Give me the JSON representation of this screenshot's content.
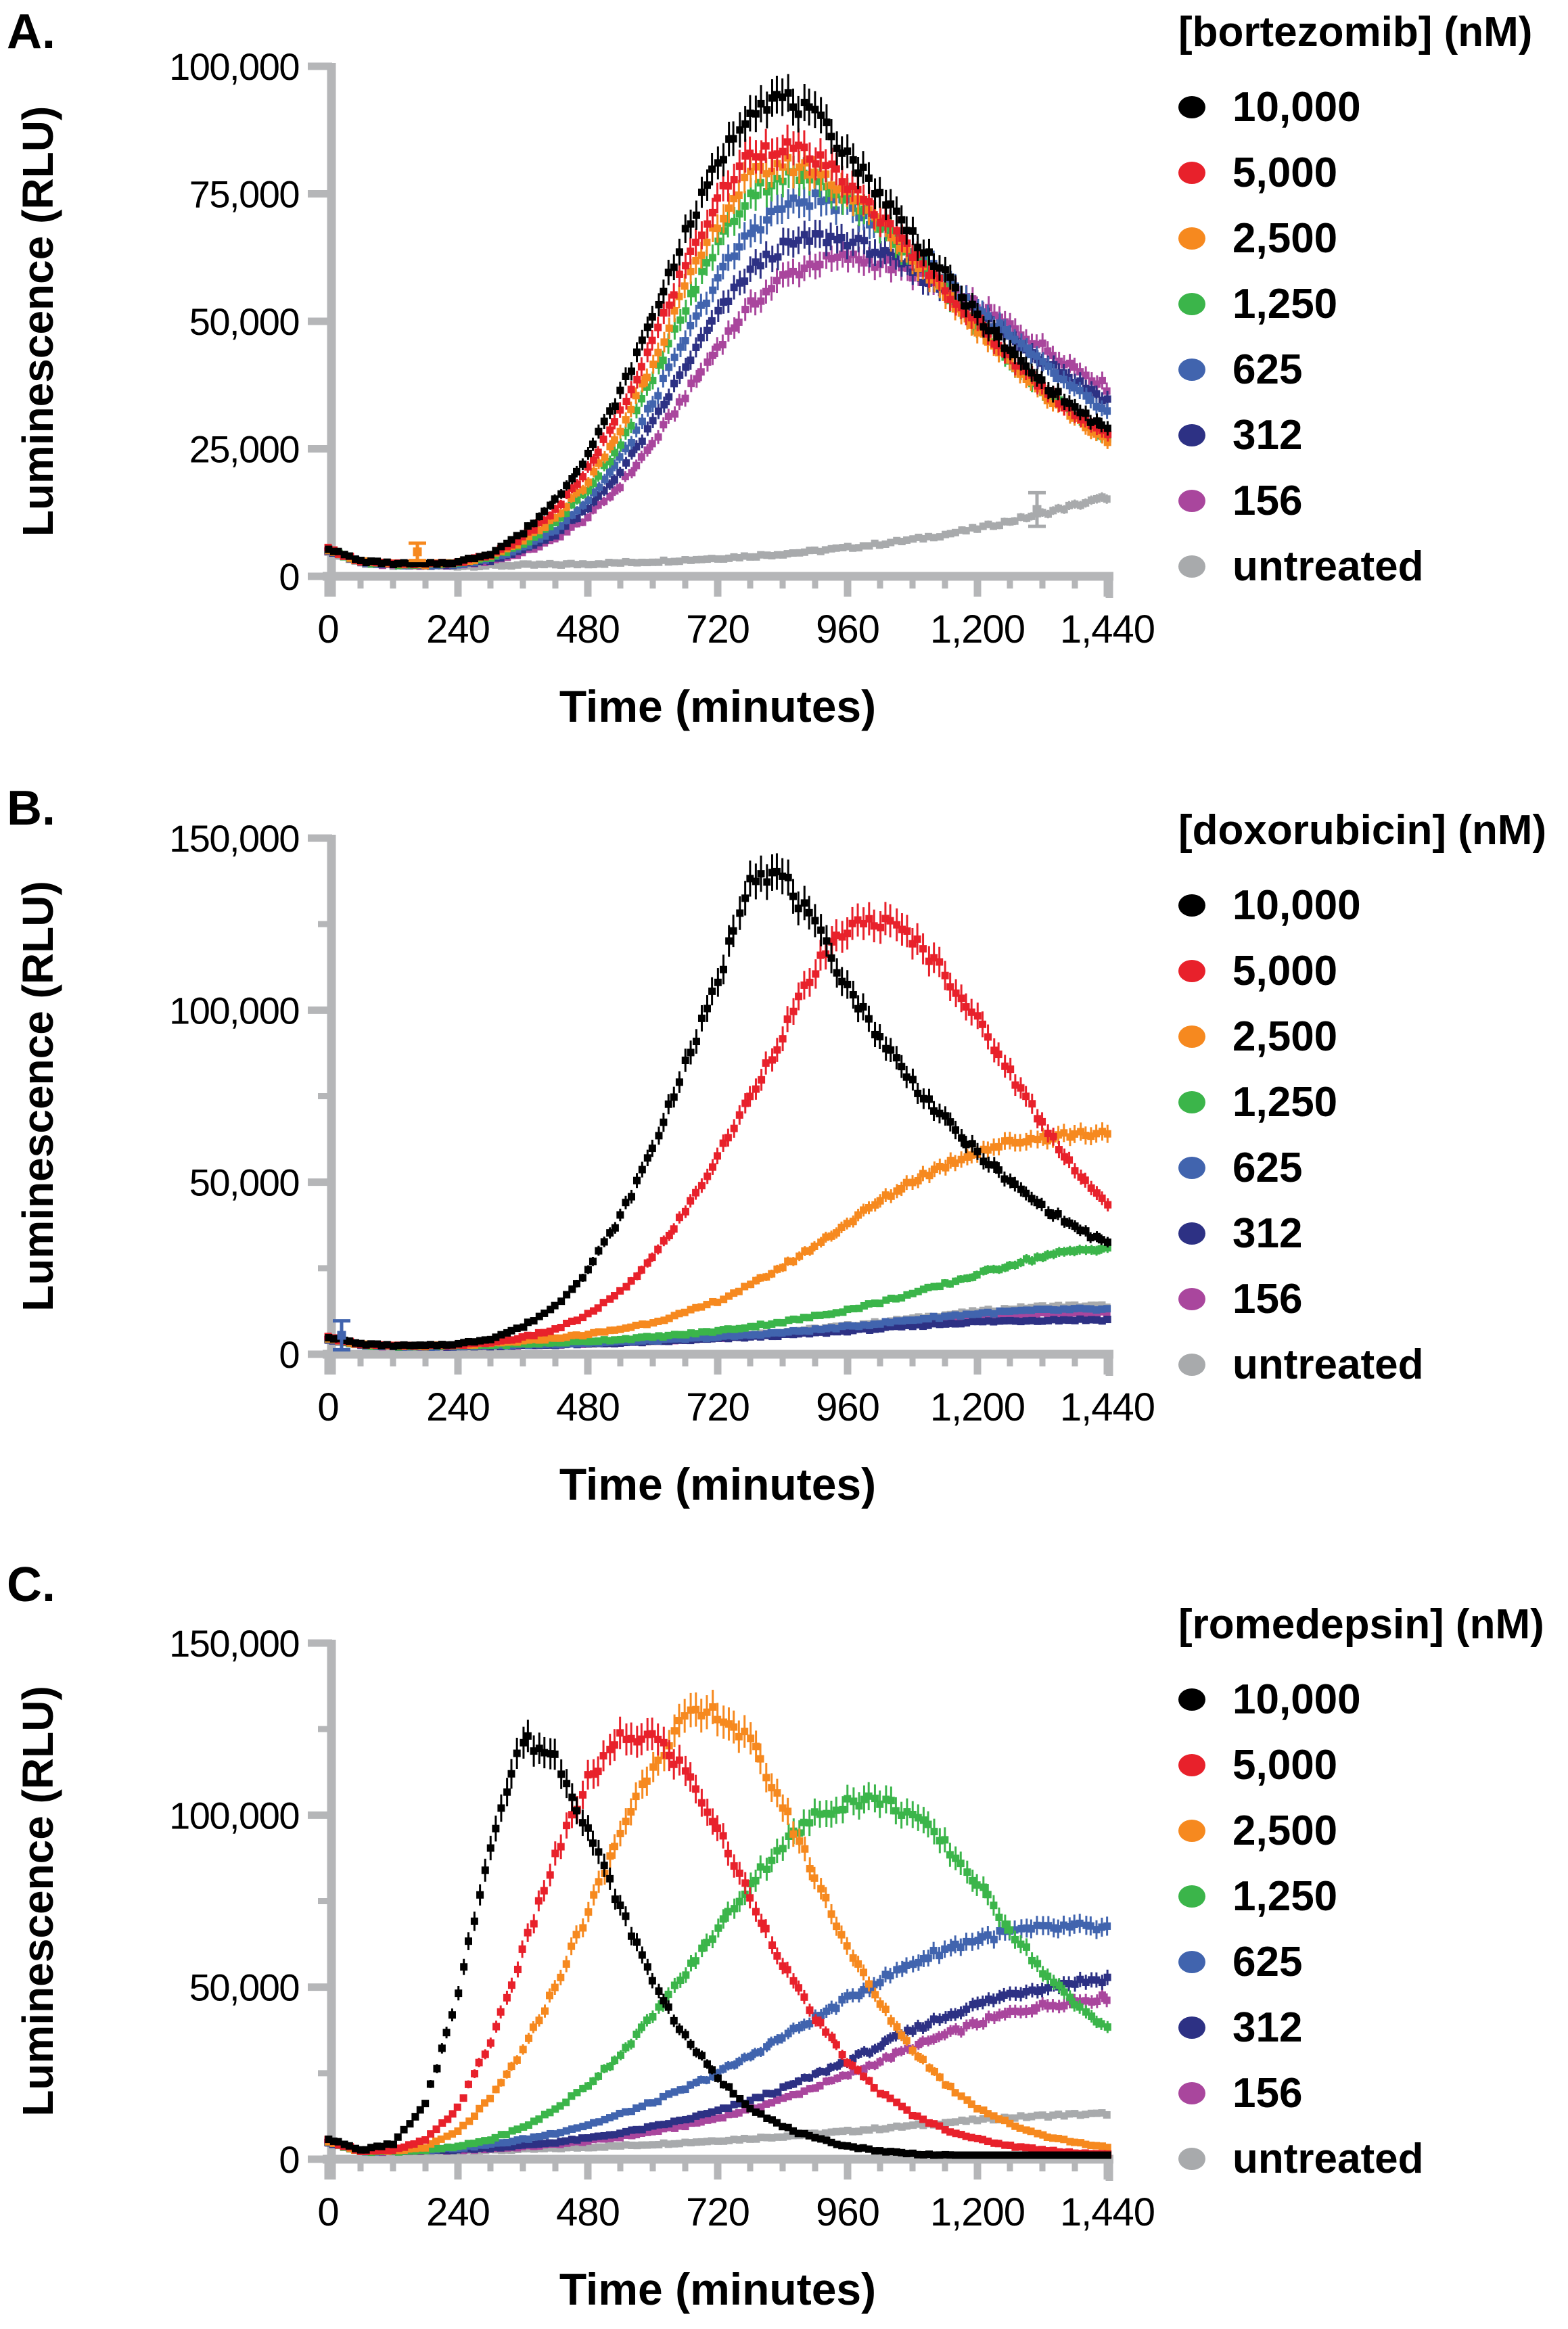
{
  "colors": {
    "c10000": "#000000",
    "c5000": "#E8212B",
    "c2500": "#F6891F",
    "c1250": "#3BB54A",
    "c625": "#4164AE",
    "c312": "#2D3184",
    "c156": "#A9469D",
    "untreated": "#A8AAAC",
    "axis": "#B5B6B8",
    "text": "#000000"
  },
  "chart_data": [
    {
      "type": "line",
      "panel_label": "A.",
      "legend_title": "[bortezomib] (nM)",
      "xlabel": "Time (minutes)",
      "ylabel": "Luminescence (RLU)",
      "xlim": [
        0,
        1440
      ],
      "ylim": [
        0,
        100000
      ],
      "x_ticks": [
        0,
        240,
        480,
        720,
        960,
        1200,
        1440
      ],
      "x_tick_labels": [
        "0",
        "240",
        "480",
        "720",
        "960",
        "1,200",
        "1,440"
      ],
      "x_minor_step": 60,
      "y_ticks": [
        0,
        25000,
        50000,
        75000,
        100000
      ],
      "y_tick_labels": [
        "0",
        "25,000",
        "50,000",
        "75,000",
        "100,000"
      ],
      "y_minor_ticks": [],
      "grid": false,
      "legend_position": "right",
      "x": [
        0,
        60,
        120,
        180,
        240,
        300,
        360,
        420,
        480,
        540,
        600,
        660,
        720,
        780,
        840,
        900,
        960,
        1020,
        1080,
        1140,
        1200,
        1260,
        1320,
        1380,
        1440
      ],
      "series": [
        {
          "name": "10,000",
          "color_key": "c10000",
          "values": [
            5500,
            3000,
            2500,
            2400,
            2800,
            4500,
            8500,
            15000,
            24000,
            36000,
            51000,
            67000,
            81000,
            92000,
            94000,
            90000,
            83000,
            75000,
            67000,
            59000,
            51000,
            44000,
            38000,
            33000,
            28500
          ]
        },
        {
          "name": "5,000",
          "color_key": "c5000",
          "values": [
            5400,
            2950,
            2450,
            2350,
            2700,
            4200,
            7500,
            13000,
            21000,
            32000,
            46000,
            61000,
            74000,
            83000,
            84500,
            82000,
            77000,
            70500,
            63500,
            56500,
            49500,
            43000,
            37000,
            32000,
            27500
          ]
        },
        {
          "name": "2,500",
          "color_key": "c2500",
          "values": [
            5300,
            2900,
            2400,
            2300,
            2600,
            3900,
            6800,
            11500,
            18500,
            28500,
            42000,
            56500,
            69500,
            78500,
            81000,
            79500,
            75500,
            69500,
            62500,
            55500,
            48500,
            42000,
            36000,
            31000,
            26500
          ]
        },
        {
          "name": "1,250",
          "color_key": "c1250",
          "values": [
            5300,
            2850,
            2350,
            2250,
            2500,
            3700,
            6200,
            10500,
            17000,
            26000,
            38500,
            52500,
            65500,
            75000,
            78500,
            78000,
            74500,
            69000,
            62500,
            56000,
            49000,
            42500,
            36500,
            31500,
            27000
          ]
        },
        {
          "name": "625",
          "color_key": "c625",
          "values": [
            5200,
            2800,
            2300,
            2200,
            2400,
            3400,
            5600,
            9200,
            15000,
            23000,
            34000,
            46500,
            58500,
            67500,
            72500,
            74000,
            72500,
            69000,
            64000,
            58500,
            52500,
            47000,
            41500,
            36500,
            32000
          ]
        },
        {
          "name": "312",
          "color_key": "c312",
          "values": [
            5200,
            2750,
            2250,
            2150,
            2350,
            3200,
            5100,
            8200,
            13200,
            20500,
            30000,
            41000,
            51500,
            60000,
            64500,
            66500,
            66000,
            63500,
            60000,
            56000,
            51500,
            47000,
            42500,
            38500,
            34500
          ]
        },
        {
          "name": "156",
          "color_key": "c156",
          "values": [
            5100,
            2700,
            2200,
            2100,
            2300,
            3000,
            4600,
            7300,
            11600,
            17800,
            26000,
            35500,
            45000,
            53000,
            58500,
            61500,
            62500,
            61500,
            59500,
            56500,
            53000,
            49000,
            45000,
            41000,
            37000
          ]
        },
        {
          "name": "untreated",
          "color_key": "untreated",
          "values": [
            5000,
            2600,
            2100,
            2000,
            2000,
            2100,
            2200,
            2300,
            2450,
            2650,
            2900,
            3200,
            3550,
            3950,
            4400,
            4950,
            5600,
            6350,
            7200,
            8200,
            9400,
            10800,
            12300,
            13900,
            15500
          ]
        }
      ],
      "extra_points": [
        {
          "series_color_key": "c2500",
          "t": 165,
          "v": 4800,
          "err": 1700
        },
        {
          "series_color_key": "untreated",
          "t": 1310,
          "v": 13100,
          "err": 3300
        }
      ]
    },
    {
      "type": "line",
      "panel_label": "B.",
      "legend_title": "[doxorubicin] (nM)",
      "xlabel": "Time (minutes)",
      "ylabel": "Luminescence (RLU)",
      "xlim": [
        0,
        1440
      ],
      "ylim": [
        0,
        150000
      ],
      "x_ticks": [
        0,
        240,
        480,
        720,
        960,
        1200,
        1440
      ],
      "x_tick_labels": [
        "0",
        "240",
        "480",
        "720",
        "960",
        "1,200",
        "1,440"
      ],
      "x_minor_step": 60,
      "y_ticks": [
        0,
        50000,
        100000,
        150000
      ],
      "y_tick_labels": [
        "0",
        "50,000",
        "100,000",
        "150,000"
      ],
      "y_minor_ticks": [
        25000,
        75000,
        125000
      ],
      "grid": false,
      "legend_position": "right",
      "x": [
        0,
        60,
        120,
        180,
        240,
        300,
        360,
        420,
        480,
        540,
        600,
        660,
        720,
        780,
        840,
        900,
        960,
        1020,
        1080,
        1140,
        1200,
        1260,
        1320,
        1380,
        1440
      ],
      "series": [
        {
          "name": "10,000",
          "color_key": "c10000",
          "values": [
            5000,
            3000,
            2500,
            2500,
            3000,
            4500,
            8000,
            14000,
            24500,
            40000,
            60000,
            84000,
            108000,
            140000,
            139000,
            124000,
            107000,
            92000,
            79000,
            68000,
            58500,
            50000,
            43000,
            37000,
            32000
          ]
        },
        {
          "name": "5,000",
          "color_key": "c5000",
          "values": [
            4900,
            2900,
            2450,
            2400,
            2700,
            3400,
            4800,
            7200,
            11500,
            18000,
            28000,
            41500,
            57500,
            75000,
            93000,
            112000,
            124000,
            126000,
            121000,
            111000,
            97000,
            82000,
            67000,
            54000,
            43000
          ]
        },
        {
          "name": "2,500",
          "color_key": "c2500",
          "values": [
            4700,
            2800,
            2400,
            2400,
            2600,
            3100,
            3800,
            4700,
            5800,
            7300,
            9300,
            12000,
            15500,
            20000,
            25500,
            31500,
            38000,
            44500,
            50500,
            55000,
            59000,
            61500,
            63000,
            64000,
            64500
          ]
        },
        {
          "name": "1,250",
          "color_key": "c1250",
          "values": [
            4600,
            2700,
            2350,
            2300,
            2450,
            2700,
            3000,
            3350,
            3800,
            4350,
            5000,
            5800,
            6800,
            8000,
            9400,
            11000,
            12900,
            15100,
            17600,
            20300,
            23200,
            26000,
            28500,
            30000,
            31000
          ]
        },
        {
          "name": "625",
          "color_key": "c625",
          "values": [
            4500,
            2650,
            2300,
            2250,
            2350,
            2500,
            2700,
            2950,
            3250,
            3600,
            4000,
            4450,
            5000,
            5600,
            6300,
            7100,
            8000,
            9000,
            10000,
            11000,
            11800,
            12400,
            12800,
            13000,
            13000
          ]
        },
        {
          "name": "312",
          "color_key": "c312",
          "values": [
            4400,
            2600,
            2250,
            2200,
            2300,
            2400,
            2550,
            2750,
            3000,
            3300,
            3650,
            4050,
            4500,
            5000,
            5550,
            6150,
            6800,
            7500,
            8200,
            8900,
            9400,
            9700,
            9900,
            10000,
            10000
          ]
        },
        {
          "name": "156",
          "color_key": "c156",
          "values": [
            4450,
            2620,
            2280,
            2230,
            2330,
            2450,
            2600,
            2820,
            3100,
            3430,
            3820,
            4280,
            4800,
            5380,
            6020,
            6720,
            7480,
            8300,
            9150,
            10000,
            10800,
            11400,
            11800,
            12000,
            12000
          ]
        },
        {
          "name": "untreated",
          "color_key": "untreated",
          "values": [
            4300,
            2550,
            2200,
            2150,
            2250,
            2380,
            2550,
            2780,
            3080,
            3450,
            3900,
            4430,
            5040,
            5730,
            6500,
            7350,
            8280,
            9290,
            10350,
            11400,
            12400,
            13200,
            13800,
            14000,
            14000
          ]
        }
      ],
      "extra_points": [
        {
          "series_color_key": "c625",
          "t": 25,
          "v": 5500,
          "err": 4200
        }
      ]
    },
    {
      "type": "line",
      "panel_label": "C.",
      "legend_title": "[romedepsin] (nM)",
      "xlabel": "Time (minutes)",
      "ylabel": "Luminescence (RLU)",
      "xlim": [
        0,
        1440
      ],
      "ylim": [
        0,
        150000
      ],
      "x_ticks": [
        0,
        240,
        480,
        720,
        960,
        1200,
        1440
      ],
      "x_tick_labels": [
        "0",
        "240",
        "480",
        "720",
        "960",
        "1,200",
        "1,440"
      ],
      "x_minor_step": 60,
      "y_ticks": [
        0,
        50000,
        100000,
        150000
      ],
      "y_tick_labels": [
        "0",
        "50,000",
        "100,000",
        "150,000"
      ],
      "y_minor_ticks": [
        25000,
        75000,
        125000
      ],
      "grid": false,
      "legend_position": "right",
      "x": [
        0,
        60,
        120,
        180,
        240,
        300,
        360,
        420,
        480,
        540,
        600,
        660,
        720,
        780,
        840,
        900,
        960,
        1020,
        1080,
        1140,
        1200,
        1260,
        1320,
        1380,
        1440
      ],
      "series": [
        {
          "name": "10,000",
          "color_key": "c10000",
          "values": [
            6000,
            2600,
            4500,
            16000,
            48000,
            92000,
            122000,
            117000,
            96000,
            73000,
            52000,
            35500,
            23500,
            15000,
            9500,
            6000,
            3800,
            2400,
            1600,
            1100,
            850,
            700,
            600,
            550,
            500
          ]
        },
        {
          "name": "5,000",
          "color_key": "c5000",
          "values": [
            5500,
            2400,
            2500,
            5500,
            15000,
            34000,
            60000,
            88000,
            110000,
            122000,
            123000,
            113000,
            96000,
            76000,
            57000,
            41000,
            28500,
            19500,
            13000,
            8700,
            5800,
            3900,
            2700,
            1900,
            1400
          ]
        },
        {
          "name": "2,500",
          "color_key": "c2500",
          "values": [
            5300,
            2300,
            2350,
            3500,
            8000,
            17500,
            31500,
            50000,
            72000,
            95000,
            115000,
            128000,
            130000,
            121000,
            103000,
            82000,
            62000,
            45000,
            32000,
            22000,
            15000,
            10200,
            7000,
            4900,
            3500
          ]
        },
        {
          "name": "1,250",
          "color_key": "c1250",
          "values": [
            5200,
            2250,
            2250,
            2600,
            3600,
            5700,
            9200,
            14500,
            21500,
            30500,
            41500,
            54000,
            67000,
            80000,
            91500,
            99500,
            104000,
            104500,
            100000,
            91500,
            80000,
            67000,
            54500,
            45000,
            38500
          ]
        },
        {
          "name": "625",
          "color_key": "c625",
          "values": [
            5100,
            2300,
            2350,
            2700,
            3300,
            4300,
            5700,
            7600,
            10000,
            13000,
            16500,
            20500,
            25000,
            30000,
            35500,
            41000,
            46500,
            52000,
            57000,
            61000,
            64000,
            66000,
            67000,
            67500,
            67000
          ]
        },
        {
          "name": "312",
          "color_key": "c312",
          "values": [
            5000,
            2250,
            2300,
            2500,
            2800,
            3300,
            4000,
            4900,
            6100,
            7600,
            9400,
            11500,
            14000,
            17000,
            20500,
            24500,
            28500,
            33000,
            37500,
            41500,
            45000,
            48000,
            50000,
            51500,
            52500
          ]
        },
        {
          "name": "156",
          "color_key": "c156",
          "values": [
            5000,
            2200,
            2250,
            2400,
            2650,
            3050,
            3600,
            4350,
            5300,
            6500,
            8000,
            9800,
            12000,
            14500,
            17500,
            21000,
            24500,
            28500,
            32500,
            36000,
            39500,
            42500,
            44500,
            46000,
            47000
          ]
        },
        {
          "name": "untreated",
          "color_key": "untreated",
          "values": [
            5500,
            2300,
            2200,
            2250,
            2400,
            2600,
            2850,
            3150,
            3500,
            3900,
            4350,
            4850,
            5400,
            6000,
            6650,
            7350,
            8100,
            8900,
            9750,
            10600,
            11400,
            12100,
            12600,
            13000,
            13200
          ]
        }
      ],
      "extra_points": []
    }
  ]
}
